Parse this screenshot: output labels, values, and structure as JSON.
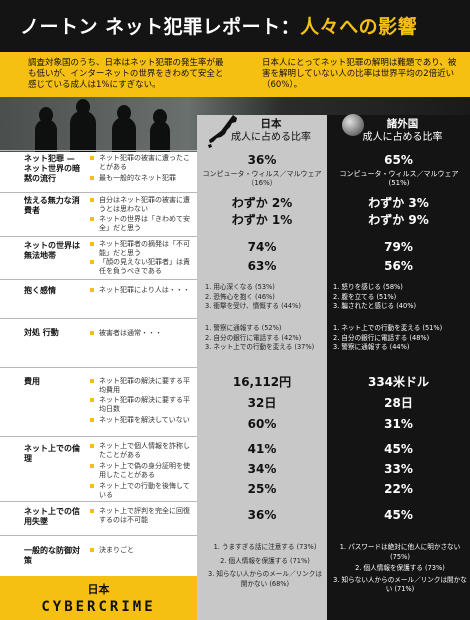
{
  "title": {
    "main": "ノートン ネット犯罪レポート：",
    "accent": "人々への影響"
  },
  "intro": {
    "left": "調査対象国のうち、日本はネット犯罪の発生率が最も低いが、インターネットの世界をきわめて安全と感じている成人は1%にすぎない。",
    "right": "日本人にとってネット犯罪の解明は難題であり、被害を解明していない人の比率は世界平均の2倍近い（60%）。"
  },
  "columns": {
    "japan": {
      "name": "日本",
      "desc": "成人に占める比率"
    },
    "global": {
      "name": "諸外国",
      "desc": "成人に占める比率"
    }
  },
  "rows": [
    {
      "category": "ネット犯罪 — ネット世界の暗黙の流行",
      "labels": [
        "ネット犯罪の被害に遭ったことがある",
        "最も一般的なネット犯罪"
      ],
      "japan": [
        "36%",
        "コンピュータ・ウィルス／マルウェア（16%）"
      ],
      "global": [
        "65%",
        "コンピュータ・ウィルス／マルウェア(51%)"
      ]
    },
    {
      "category": "怯える無力な消費者",
      "labels": [
        "自分はネット犯罪の被害に遭うとは思わない",
        "ネットの世界は「きわめて安全」だと思う"
      ],
      "japan": [
        "わずか 2%",
        "わずか 1%"
      ],
      "global": [
        "わずか 3%",
        "わずか 9%"
      ]
    },
    {
      "category": "ネットの世界は無法地帯",
      "labels": [
        "ネット犯罪者の摘発は「不可能」だと思う",
        "「顔の見えない犯罪者」は責任を負うべきである"
      ],
      "japan": [
        "74%",
        "63%"
      ],
      "global": [
        "79%",
        "56%"
      ]
    },
    {
      "category": "抱く感情",
      "labels": [
        "ネット犯罪により人は・・・"
      ],
      "japan": [
        "1. 用心深くなる (53%)",
        "2. 恐怖心を抱く (46%)",
        "3. 衝撃を受け、憤慨する (44%)"
      ],
      "global": [
        "1. 怒りを感じる (58%)",
        "2. 腹を立てる (51%)",
        "3. 騙されたと感じる (40%)"
      ]
    },
    {
      "category": "対処 行動",
      "labels": [
        "被害者は通常・・・"
      ],
      "japan": [
        "1. 警察に通報する (52%)",
        "2. 自分の銀行に電話する (42%)",
        "3. ネット上での行動を変える (37%)"
      ],
      "global": [
        "1. ネット上での行動を変える (51%)",
        "2. 自分の銀行に電話する (48%)",
        "3. 警察に通報する (44%)"
      ]
    },
    {
      "category": "費用",
      "labels": [
        "ネット犯罪の解決に要する平均費用",
        "ネット犯罪の解決に要する平均日数",
        "ネット犯罪を解決していない"
      ],
      "japan": [
        "16,112円",
        "32日",
        "60%"
      ],
      "global": [
        "334米ドル",
        "28日",
        "31%"
      ]
    },
    {
      "category": "ネット上での倫理",
      "labels": [
        "ネット上で個人情報を詐称したことがある",
        "ネット上で偽の身分証明を使用したことがある",
        "ネット上での行動を後悔している"
      ],
      "japan": [
        "41%",
        "34%",
        "25%"
      ],
      "global": [
        "45%",
        "33%",
        "22%"
      ]
    },
    {
      "category": "ネット上での信用失墜",
      "labels": [
        "ネット上で評判を完全に回復するのは不可能"
      ],
      "japan": [
        "36%"
      ],
      "global": [
        "45%"
      ]
    },
    {
      "category": "一般的な防御対策",
      "labels": [
        "決まりごと"
      ],
      "japan": [
        "1. うますぎる話に注意する (73%)",
        "2. 個人情報を保護する (71%)",
        "3. 知らない人からのメール／リンクは開かない (68%)"
      ],
      "global": [
        "1. パスワードは絶対に他人に明かさない (75%)",
        "2. 個人情報を保護する (73%)",
        "3. 知らない人からのメール／リンクは開かない (71%)"
      ]
    }
  ],
  "brand": {
    "top": "日本",
    "bottom": "CYBERCRIME"
  },
  "colors": {
    "accent": "#f5c012",
    "dark": "#141414",
    "japan_column": "#c8c8c8"
  },
  "icons": [
    "japan-map-icon",
    "globe-icon"
  ]
}
